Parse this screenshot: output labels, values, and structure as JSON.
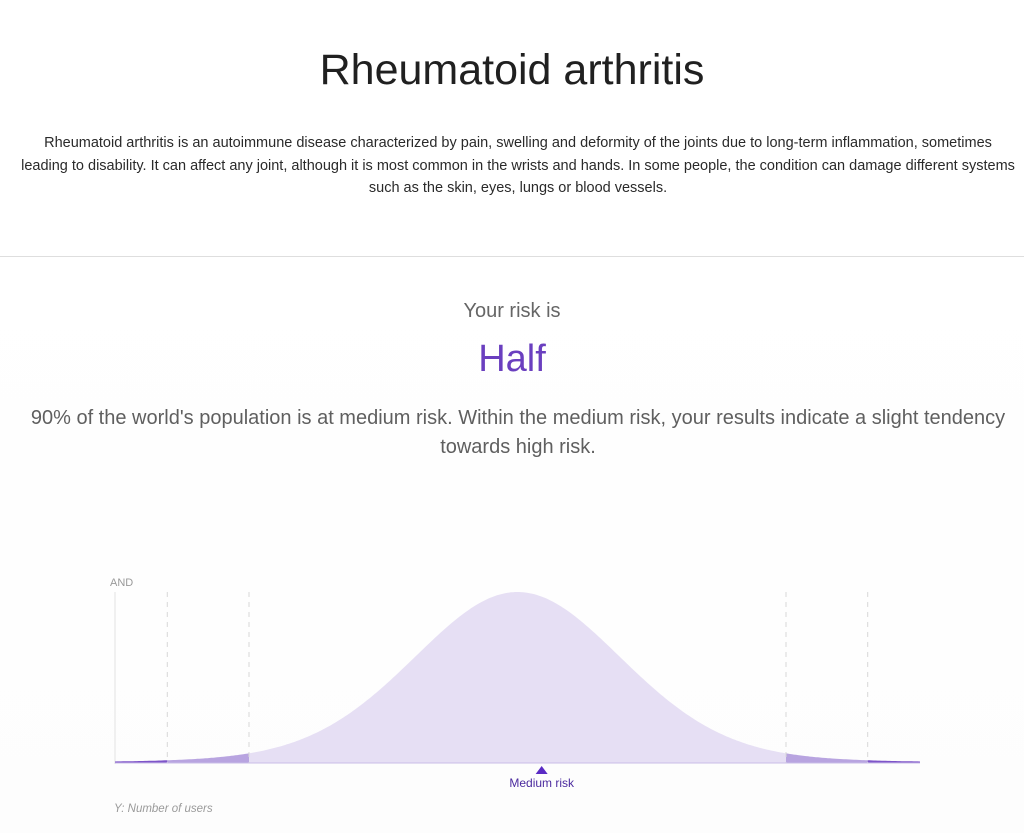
{
  "header": {
    "title": "Rheumatoid arthritis",
    "description": "Rheumatoid arthritis is an autoimmune disease characterized by pain, swelling and deformity of the joints due to long-term inflammation, sometimes leading to disability. It can affect any joint, although it is most common in the wrists and hands. In some people, the condition can damage different systems such as the skin, eyes, lungs or blood vessels."
  },
  "result": {
    "label": "Your risk is",
    "value": "Half",
    "explanation": "90% of the world's population is at medium risk. Within the medium risk, your results indicate a slight tendency towards high risk."
  },
  "colors": {
    "accent": "#6a3fbf",
    "curve_light": "#e6dff4",
    "curve_mid": "#b8a4e0",
    "curve_dark": "#7e55c9",
    "marker": "#5a2bc4"
  },
  "chart": {
    "y_top_label": "AND",
    "marker_label": "Medium risk",
    "y_caption": "Y: Number of users",
    "user_position": 0.53,
    "outer_band_fraction": 0.065,
    "inner_band_fraction": 0.1665
  }
}
